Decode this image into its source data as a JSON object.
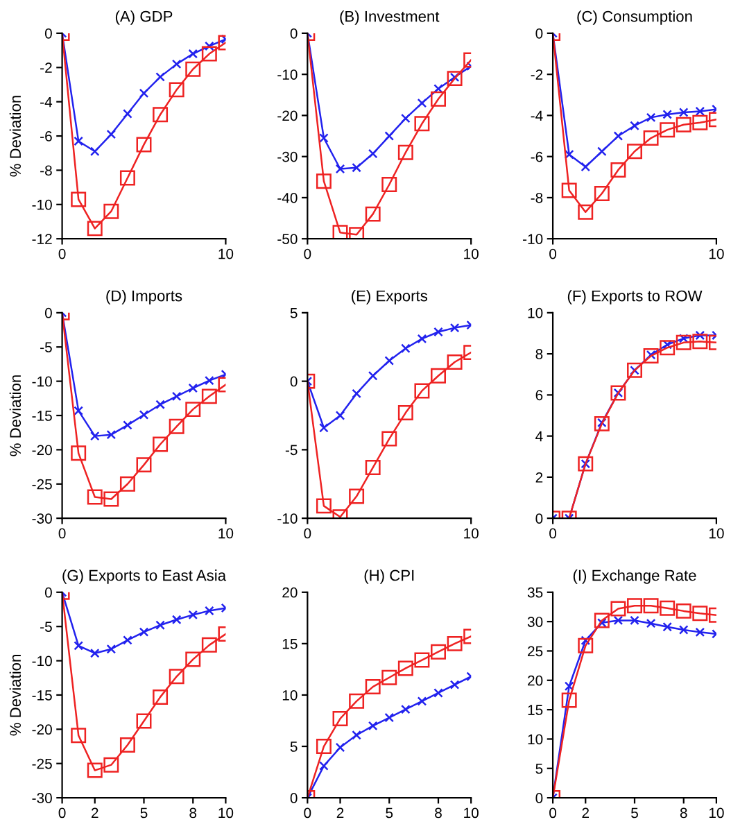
{
  "chart_data": [
    {
      "type": "line",
      "title": "(A) GDP",
      "ylabel": "% Deviation",
      "x": [
        0,
        1,
        2,
        3,
        4,
        5,
        6,
        7,
        8,
        9,
        10
      ],
      "xlim": [
        0,
        10
      ],
      "xticks": [
        0,
        10
      ],
      "ylim": [
        -12,
        0
      ],
      "yticks": [
        -12,
        -10,
        -8,
        -6,
        -4,
        -2,
        0
      ],
      "series": [
        {
          "color": "#2222ee",
          "marker": "cross",
          "values": [
            0,
            -6.3,
            -6.9,
            -5.9,
            -4.7,
            -3.5,
            -2.55,
            -1.8,
            -1.2,
            -0.75,
            -0.35
          ]
        },
        {
          "color": "#ee2222",
          "marker": "square",
          "values": [
            0,
            -9.7,
            -11.4,
            -10.4,
            -8.45,
            -6.5,
            -4.75,
            -3.3,
            -2.1,
            -1.2,
            -0.55
          ]
        }
      ]
    },
    {
      "type": "line",
      "title": "(B) Investment",
      "x": [
        0,
        1,
        2,
        3,
        4,
        5,
        6,
        7,
        8,
        9,
        10
      ],
      "xlim": [
        0,
        10
      ],
      "xticks": [
        0,
        10
      ],
      "ylim": [
        -50,
        0
      ],
      "yticks": [
        -50,
        -40,
        -30,
        -20,
        -10,
        0
      ],
      "series": [
        {
          "color": "#2222ee",
          "marker": "cross",
          "values": [
            0,
            -25.5,
            -33,
            -32.7,
            -29.3,
            -25,
            -20.7,
            -17,
            -13.5,
            -10.7,
            -8
          ]
        },
        {
          "color": "#ee2222",
          "marker": "square",
          "values": [
            0,
            -36,
            -48.5,
            -49,
            -44,
            -36.8,
            -29,
            -22,
            -16,
            -11,
            -6.5
          ]
        }
      ]
    },
    {
      "type": "line",
      "title": "(C) Consumption",
      "x": [
        0,
        1,
        2,
        3,
        4,
        5,
        6,
        7,
        8,
        9,
        10
      ],
      "xlim": [
        0,
        10
      ],
      "xticks": [
        0,
        10
      ],
      "ylim": [
        -10,
        0
      ],
      "yticks": [
        -10,
        -8,
        -6,
        -4,
        -2,
        0
      ],
      "series": [
        {
          "color": "#2222ee",
          "marker": "cross",
          "values": [
            0,
            -5.9,
            -6.5,
            -5.75,
            -5,
            -4.5,
            -4.1,
            -3.95,
            -3.85,
            -3.8,
            -3.7
          ]
        },
        {
          "color": "#ee2222",
          "marker": "square",
          "values": [
            0,
            -7.65,
            -8.7,
            -7.8,
            -6.65,
            -5.75,
            -5.1,
            -4.7,
            -4.45,
            -4.35,
            -4.2
          ]
        }
      ]
    },
    {
      "type": "line",
      "title": "(D) Imports",
      "ylabel": "% Deviation",
      "x": [
        0,
        1,
        2,
        3,
        4,
        5,
        6,
        7,
        8,
        9,
        10
      ],
      "xlim": [
        0,
        10
      ],
      "xticks": [
        0,
        10
      ],
      "ylim": [
        -30,
        0
      ],
      "yticks": [
        -30,
        -25,
        -20,
        -15,
        -10,
        -5,
        0
      ],
      "series": [
        {
          "color": "#2222ee",
          "marker": "cross",
          "values": [
            0,
            -14.3,
            -18,
            -17.8,
            -16.4,
            -14.9,
            -13.4,
            -12.2,
            -11,
            -9.9,
            -9
          ]
        },
        {
          "color": "#ee2222",
          "marker": "square",
          "values": [
            0,
            -20.5,
            -26.9,
            -27.2,
            -25,
            -22.2,
            -19.2,
            -16.6,
            -14.1,
            -12.2,
            -10.5
          ]
        }
      ]
    },
    {
      "type": "line",
      "title": "(E) Exports",
      "x": [
        0,
        1,
        2,
        3,
        4,
        5,
        6,
        7,
        8,
        9,
        10
      ],
      "xlim": [
        0,
        10
      ],
      "xticks": [
        0,
        10
      ],
      "ylim": [
        -10,
        5
      ],
      "yticks": [
        -10,
        -5,
        0,
        5
      ],
      "series": [
        {
          "color": "#2222ee",
          "marker": "cross",
          "values": [
            0,
            -3.4,
            -2.5,
            -0.9,
            0.4,
            1.5,
            2.4,
            3.1,
            3.6,
            3.9,
            4.1
          ]
        },
        {
          "color": "#ee2222",
          "marker": "square",
          "values": [
            0,
            -9.1,
            -9.9,
            -8.4,
            -6.3,
            -4.2,
            -2.3,
            -0.7,
            0.4,
            1.4,
            2.1
          ]
        }
      ]
    },
    {
      "type": "line",
      "title": "(F) Exports to ROW",
      "x": [
        0,
        1,
        2,
        3,
        4,
        5,
        6,
        7,
        8,
        9,
        10
      ],
      "xlim": [
        0,
        10
      ],
      "xticks": [
        0,
        10
      ],
      "ylim": [
        0,
        10
      ],
      "yticks": [
        0,
        2,
        4,
        6,
        8,
        10
      ],
      "series": [
        {
          "color": "#2222ee",
          "marker": "cross",
          "values": [
            0,
            0,
            2.65,
            4.65,
            6.1,
            7.2,
            7.95,
            8.45,
            8.75,
            8.9,
            8.9
          ]
        },
        {
          "color": "#ee2222",
          "marker": "square",
          "values": [
            0,
            0,
            2.65,
            4.6,
            6.1,
            7.2,
            7.9,
            8.3,
            8.55,
            8.6,
            8.55
          ]
        }
      ]
    },
    {
      "type": "line",
      "title": "(G) Exports to East Asia",
      "ylabel": "% Deviation",
      "x": [
        0,
        1,
        2,
        3,
        4,
        5,
        6,
        7,
        8,
        9,
        10
      ],
      "xlim": [
        0,
        10
      ],
      "xticks": [
        0,
        2,
        5,
        8,
        10
      ],
      "ylim": [
        -30,
        0
      ],
      "yticks": [
        -30,
        -25,
        -20,
        -15,
        -10,
        -5,
        0
      ],
      "series": [
        {
          "color": "#2222ee",
          "marker": "cross",
          "values": [
            0,
            -7.8,
            -8.9,
            -8.3,
            -7,
            -5.8,
            -4.8,
            -4,
            -3.3,
            -2.7,
            -2.3
          ]
        },
        {
          "color": "#ee2222",
          "marker": "square",
          "values": [
            0,
            -20.9,
            -26,
            -25.2,
            -22.3,
            -18.8,
            -15.3,
            -12.3,
            -9.8,
            -7.7,
            -6.1
          ]
        }
      ]
    },
    {
      "type": "line",
      "title": "(H) CPI",
      "x": [
        0,
        1,
        2,
        3,
        4,
        5,
        6,
        7,
        8,
        9,
        10
      ],
      "xlim": [
        0,
        10
      ],
      "xticks": [
        0,
        2,
        5,
        8,
        10
      ],
      "ylim": [
        0,
        20
      ],
      "yticks": [
        0,
        5,
        10,
        15,
        20
      ],
      "series": [
        {
          "color": "#2222ee",
          "marker": "cross",
          "values": [
            0,
            3.1,
            4.9,
            6.1,
            7,
            7.8,
            8.6,
            9.4,
            10.2,
            11,
            11.8
          ]
        },
        {
          "color": "#ee2222",
          "marker": "square",
          "values": [
            0,
            5,
            7.7,
            9.4,
            10.8,
            11.7,
            12.6,
            13.4,
            14.2,
            15,
            15.7
          ]
        }
      ]
    },
    {
      "type": "line",
      "title": "(I) Exchange Rate",
      "x": [
        0,
        1,
        2,
        3,
        4,
        5,
        6,
        7,
        8,
        9,
        10
      ],
      "xlim": [
        0,
        10
      ],
      "xticks": [
        0,
        2,
        5,
        8,
        10
      ],
      "ylim": [
        0,
        35
      ],
      "yticks": [
        0,
        5,
        10,
        15,
        20,
        25,
        30,
        35
      ],
      "series": [
        {
          "color": "#2222ee",
          "marker": "cross",
          "values": [
            0,
            19,
            26.8,
            29.8,
            30.2,
            30.2,
            29.7,
            29.1,
            28.6,
            28.2,
            27.9
          ]
        },
        {
          "color": "#ee2222",
          "marker": "square",
          "values": [
            0,
            16.6,
            25.9,
            30.2,
            32.2,
            32.7,
            32.7,
            32.3,
            31.8,
            31.4,
            31.1
          ]
        }
      ]
    }
  ]
}
